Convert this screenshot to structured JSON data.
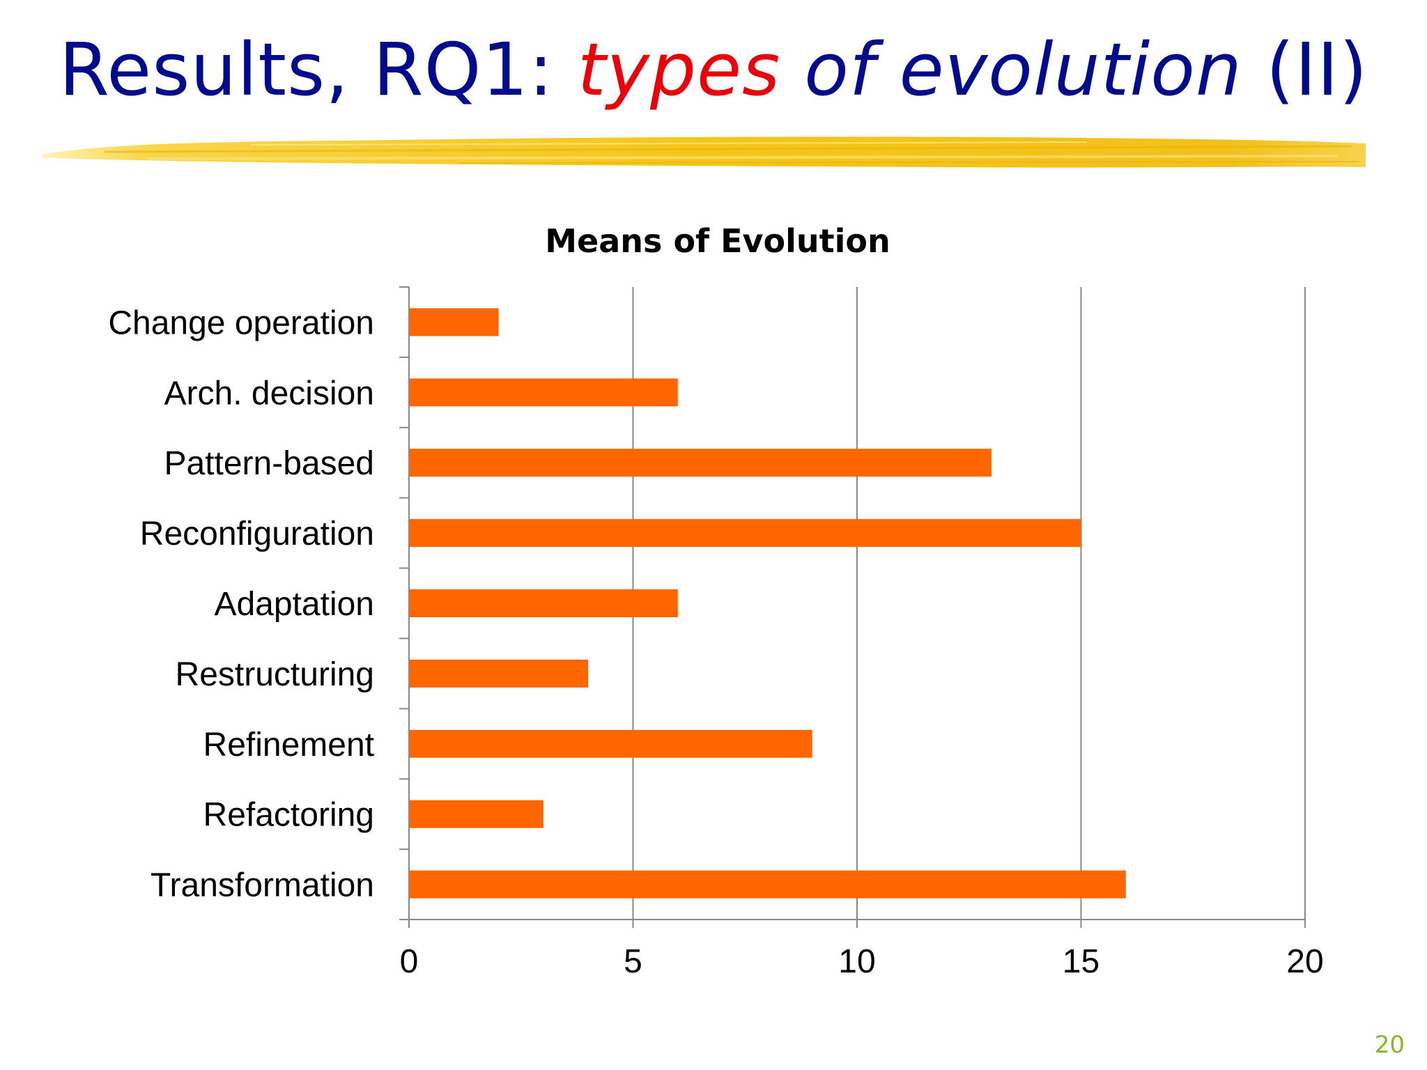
{
  "slide": {
    "title_part1": "Results, RQ1: ",
    "title_part2": "types",
    "title_part3": " of evolution",
    "title_part4": " (II)",
    "page_number": "20"
  },
  "colors": {
    "title": "#000c8c",
    "title_emphasis": "#e8000b",
    "bar": "#ff6600",
    "grid": "#888888",
    "brush": "#f5c518",
    "page_number": "#8db52b"
  },
  "chart_data": {
    "type": "bar",
    "orientation": "horizontal",
    "title": "Means of Evolution",
    "categories": [
      "Change operation",
      "Arch. decision",
      "Pattern-based",
      "Reconfiguration",
      "Adaptation",
      "Restructuring",
      "Refinement",
      "Refactoring",
      "Transformation"
    ],
    "values": [
      2,
      6,
      13,
      15,
      6,
      4,
      9,
      3,
      16
    ],
    "xlim": [
      0,
      20
    ],
    "xticks": [
      0,
      5,
      10,
      15,
      20
    ],
    "xlabel": "",
    "ylabel": "",
    "grid": "vertical",
    "legend": "none"
  }
}
